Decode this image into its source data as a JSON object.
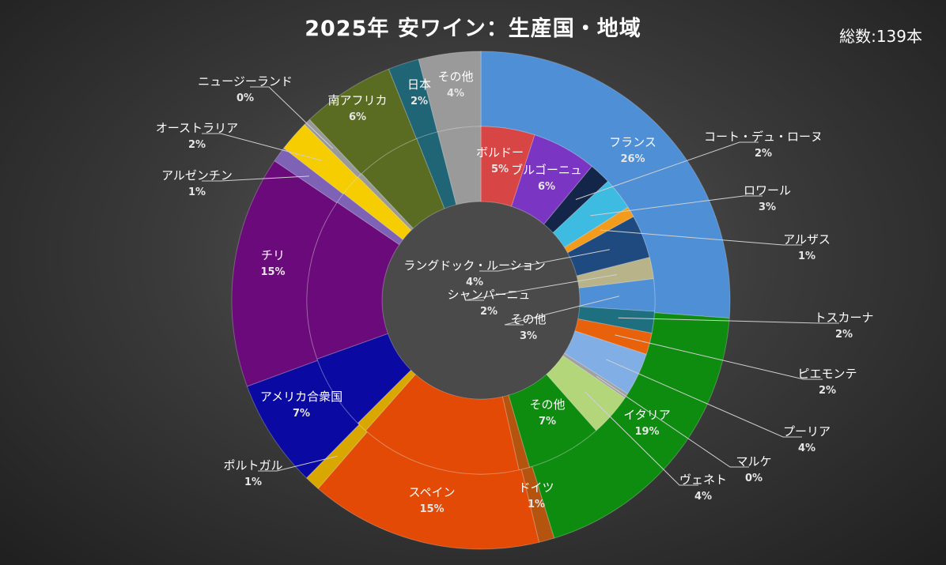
{
  "header": {
    "title": "2025年 安ワイン：生産国・地域",
    "total": "総数:139本"
  },
  "chart_data": {
    "type": "donut",
    "title": "2025年 安ワイン：生産国・地域",
    "outer_ring": [
      {
        "name": "フランス",
        "pct": "26%",
        "value": 26,
        "color": "#4e8fd6"
      },
      {
        "name": "イタリア",
        "pct": "19%",
        "value": 19,
        "color": "#0e8c10"
      },
      {
        "name": "ドイツ",
        "pct": "1%",
        "value": 1,
        "color": "#b5540e"
      },
      {
        "name": "スペイン",
        "pct": "15%",
        "value": 15,
        "color": "#e34a05"
      },
      {
        "name": "ポルトガル",
        "pct": "1%",
        "value": 1,
        "color": "#d9a800"
      },
      {
        "name": "アメリカ合衆国",
        "pct": "7%",
        "value": 7,
        "color": "#0a0aa3"
      },
      {
        "name": "チリ",
        "pct": "15%",
        "value": 15,
        "color": "#6b0a7a"
      },
      {
        "name": "アルゼンチン",
        "pct": "1%",
        "value": 1,
        "color": "#7d62b5"
      },
      {
        "name": "オーストラリア",
        "pct": "2%",
        "value": 2,
        "color": "#f5cd00"
      },
      {
        "name": "ニュージーランド",
        "pct": "0%",
        "value": 0,
        "color": "#999999"
      },
      {
        "name": "南アフリカ",
        "pct": "6%",
        "value": 6,
        "color": "#5a6b22"
      },
      {
        "name": "日本",
        "pct": "2%",
        "value": 2,
        "color": "#1f6575"
      },
      {
        "name": "その他",
        "pct": "4%",
        "value": 4,
        "color": "#9a9a9a"
      }
    ],
    "inner_ring": [
      {
        "name": "ボルドー",
        "pct": "5%",
        "value": 5,
        "color": "#d84545"
      },
      {
        "name": "ブルゴーニュ",
        "pct": "6%",
        "value": 6,
        "color": "#7a36c2"
      },
      {
        "name": "コート・デュ・ローヌ",
        "pct": "2%",
        "value": 2,
        "color": "#13264a"
      },
      {
        "name": "ロワール",
        "pct": "3%",
        "value": 3,
        "color": "#3dbbe0"
      },
      {
        "name": "アルザス",
        "pct": "1%",
        "value": 1,
        "color": "#f29b1d"
      },
      {
        "name": "ラングドック・ルーション",
        "pct": "4%",
        "value": 4,
        "color": "#1e4a80"
      },
      {
        "name": "シャンパーニュ",
        "pct": "2%",
        "value": 2,
        "color": "#b8b389"
      },
      {
        "name": "その他",
        "pct": "3%",
        "value": 3,
        "color": "#4e8fd6"
      },
      {
        "name": "トスカーナ",
        "pct": "2%",
        "value": 2,
        "color": "#1e6f80"
      },
      {
        "name": "ピエモンテ",
        "pct": "2%",
        "value": 2,
        "color": "#e8620c"
      },
      {
        "name": "プーリア",
        "pct": "4%",
        "value": 4,
        "color": "#82aee6"
      },
      {
        "name": "マルケ",
        "pct": "0%",
        "value": 0,
        "color": "#a0a0a0"
      },
      {
        "name": "ヴェネト",
        "pct": "4%",
        "value": 4,
        "color": "#b3d67a"
      },
      {
        "name": "その他",
        "pct": "7%",
        "value": 7,
        "color": "#0e8c10"
      },
      {
        "name": "ドイツ",
        "pct": "1%",
        "value": 1,
        "color": "#b5540e"
      },
      {
        "name": "スペイン",
        "pct": "15%",
        "value": 15,
        "color": "#e34a05"
      },
      {
        "name": "ポルトガル",
        "pct": "1%",
        "value": 1,
        "color": "#d9a800"
      },
      {
        "name": "アメリカ合衆国",
        "pct": "7%",
        "value": 7,
        "color": "#0a0aa3"
      },
      {
        "name": "チリ",
        "pct": "15%",
        "value": 15,
        "color": "#6b0a7a"
      },
      {
        "name": "アルゼンチン",
        "pct": "1%",
        "value": 1,
        "color": "#7d62b5"
      },
      {
        "name": "オーストラリア",
        "pct": "2%",
        "value": 2,
        "color": "#f5cd00"
      },
      {
        "name": "ニュージーランド",
        "pct": "0%",
        "value": 0,
        "color": "#999999"
      },
      {
        "name": "南アフリカ",
        "pct": "6%",
        "value": 6,
        "color": "#5a6b22"
      },
      {
        "name": "日本",
        "pct": "2%",
        "value": 2,
        "color": "#1f6575"
      },
      {
        "name": "その他",
        "pct": "4%",
        "value": 4,
        "color": "#9a9a9a"
      }
    ]
  }
}
